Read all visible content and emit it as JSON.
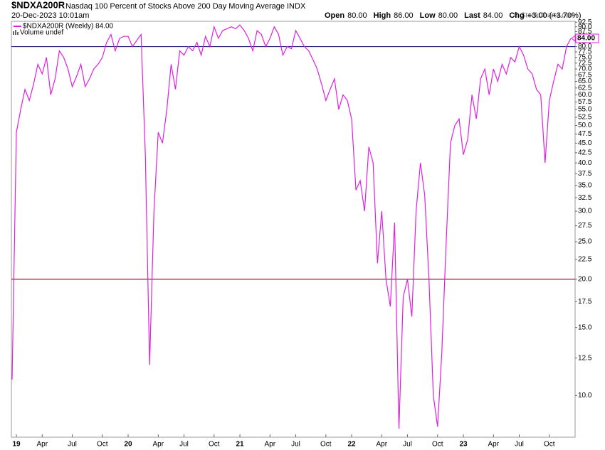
{
  "chart_data": {
    "type": "line",
    "title": "$NDXA200R",
    "subtitle": "Nasdaq 100 Percent of Stocks Above 200 Day Moving Average",
    "exchange": "INDX",
    "date": "20-Dec-2023 10:01am",
    "quote": [
      {
        "label": "Open",
        "value": "80.00"
      },
      {
        "label": "High",
        "value": "86.00"
      },
      {
        "label": "Low",
        "value": "80.00"
      },
      {
        "label": "Last",
        "value": "84.00"
      },
      {
        "label": "Chg",
        "value": "+3.00 (+3.70%)"
      }
    ],
    "credit": "© StockCharts.com",
    "volume_note": "Volume undef",
    "log_scale": true,
    "categories": [
      null,
      "19",
      null,
      null,
      null,
      null,
      null,
      "Apr",
      null,
      null,
      null,
      null,
      null,
      null,
      "Jul",
      null,
      null,
      null,
      null,
      null,
      null,
      "Oct",
      null,
      null,
      null,
      null,
      null,
      "20",
      null,
      null,
      null,
      null,
      null,
      null,
      "Apr",
      null,
      null,
      null,
      null,
      null,
      "Jul",
      null,
      null,
      null,
      null,
      null,
      null,
      "Oct",
      null,
      null,
      null,
      null,
      null,
      "21",
      null,
      null,
      null,
      null,
      null,
      null,
      "Apr",
      null,
      null,
      null,
      null,
      null,
      "Jul",
      null,
      null,
      null,
      null,
      null,
      null,
      "Oct",
      null,
      null,
      null,
      null,
      null,
      "22",
      null,
      null,
      null,
      null,
      null,
      null,
      "Apr",
      null,
      null,
      null,
      null,
      null,
      "Jul",
      null,
      null,
      null,
      null,
      null,
      null,
      "Oct",
      null,
      null,
      null,
      null,
      null,
      "23",
      null,
      null,
      null,
      null,
      null,
      null,
      "Apr",
      null,
      null,
      null,
      null,
      null,
      "Jul",
      null,
      null,
      null,
      null,
      null,
      null,
      "Oct",
      null,
      null,
      null,
      null,
      null
    ],
    "series": [
      {
        "name": "$NDXA200R (Weekly) 84.00",
        "color": "#e020e0",
        "values": [
          11,
          48,
          55,
          62,
          58,
          64,
          72,
          68,
          75,
          60,
          66,
          78,
          75,
          70,
          63,
          67,
          72,
          63,
          66,
          70,
          72,
          75,
          82,
          86,
          78,
          84,
          85,
          85,
          80,
          83,
          86,
          42,
          12,
          30,
          48,
          45,
          55,
          72,
          62,
          78,
          76,
          80,
          78,
          82,
          76,
          85,
          80,
          90,
          84,
          88,
          89,
          90,
          89,
          91,
          88,
          84,
          78,
          88,
          86,
          80,
          84,
          90,
          86,
          76,
          80,
          79,
          88,
          84,
          80,
          78,
          74,
          70,
          64,
          58,
          62,
          66,
          55,
          60,
          58,
          52,
          34,
          36,
          30,
          44,
          40,
          22,
          30,
          20,
          17,
          28,
          8.2,
          18,
          20,
          16,
          30,
          40,
          33,
          20,
          10,
          8.3,
          13,
          25,
          45,
          50,
          52,
          42,
          46,
          60,
          52,
          66,
          70,
          60,
          70,
          65,
          72,
          68,
          75,
          73,
          80,
          76,
          70,
          68,
          62,
          60,
          40,
          58,
          65,
          72,
          70,
          80,
          84
        ],
        "last_label": "84.00"
      }
    ],
    "reference_lines": [
      {
        "value": 80,
        "color": "#1a1a7a"
      },
      {
        "value": 20,
        "color": "#a0103a"
      }
    ],
    "ylim": [
      7.8,
      93
    ],
    "yticks": [
      {
        "value": 10,
        "label": "10.0"
      },
      {
        "value": 12.5,
        "label": "12.5"
      },
      {
        "value": 15,
        "label": "15.0"
      },
      {
        "value": 17.5,
        "label": "17.5"
      },
      {
        "value": 20,
        "label": "20.0"
      },
      {
        "value": 22.5,
        "label": "22.5"
      },
      {
        "value": 25,
        "label": "25.0"
      },
      {
        "value": 27.5,
        "label": "27.5"
      },
      {
        "value": 30,
        "label": "30.0"
      },
      {
        "value": 32.5,
        "label": "32.5"
      },
      {
        "value": 35,
        "label": "35.0"
      },
      {
        "value": 37.5,
        "label": "37.5"
      },
      {
        "value": 40,
        "label": "40.0"
      },
      {
        "value": 42.5,
        "label": "42.5"
      },
      {
        "value": 45,
        "label": "45.0"
      },
      {
        "value": 47.5,
        "label": "47.5"
      },
      {
        "value": 50,
        "label": "50.0"
      },
      {
        "value": 52.5,
        "label": "52.5"
      },
      {
        "value": 55,
        "label": "55.0"
      },
      {
        "value": 57.5,
        "label": "57.5"
      },
      {
        "value": 60,
        "label": "60.0"
      },
      {
        "value": 62.5,
        "label": "62.5"
      },
      {
        "value": 65,
        "label": "65.0"
      },
      {
        "value": 67.5,
        "label": "67.5"
      },
      {
        "value": 70,
        "label": "70.0"
      },
      {
        "value": 72.5,
        "label": "72.5"
      },
      {
        "value": 75,
        "label": "75.0"
      },
      {
        "value": 77.5,
        "label": "77.5"
      },
      {
        "value": 80,
        "label": "80.0"
      },
      {
        "value": 82.5,
        "label": "82.5"
      },
      {
        "value": 85,
        "label": "85.0"
      },
      {
        "value": 87.5,
        "label": "87.5"
      },
      {
        "value": 90,
        "label": "90.0"
      },
      {
        "value": 92.5,
        "label": "92.5"
      }
    ]
  }
}
